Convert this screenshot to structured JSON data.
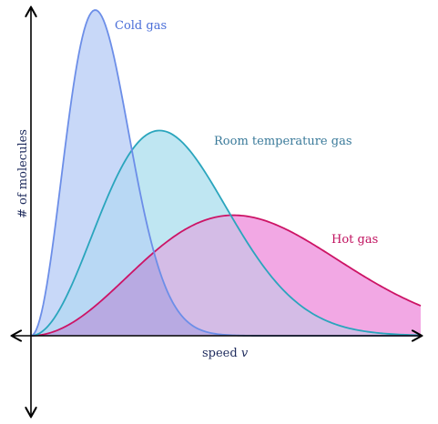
{
  "chart_data": {
    "type": "area",
    "title": "",
    "xlabel_text": "speed ",
    "xlabel_var": "v",
    "ylabel": "# of molecules",
    "x_range": [
      0,
      10
    ],
    "y_range": [
      0,
      1
    ],
    "grid": false,
    "legend": "labels placed next to curves",
    "series": [
      {
        "name": "Cold gas",
        "peak_x": 1.65,
        "peak_y": 1.0,
        "stroke": "#6c8ee8",
        "fill": "#c8d8f8",
        "label_color": "#4a6ed8"
      },
      {
        "name": "Room temperature gas",
        "peak_x": 3.3,
        "peak_y": 0.63,
        "stroke": "#2aa5bd",
        "fill": "#bfe6f2",
        "label_color": "#3a7a9a"
      },
      {
        "name": "Hot gas",
        "peak_x": 5.2,
        "peak_y": 0.37,
        "stroke": "#cc1466",
        "fill": "#f2a8e4",
        "label_color": "#c0105e"
      }
    ]
  },
  "colors": {
    "axis": "#000000",
    "axis_label": "#1d2a5c",
    "overlap_cold_room": "#b8d8f4",
    "overlap_cold_hot": "#c4b4ea",
    "overlap_room_hot": "#d4bce6",
    "overlap_all": "#b8aae2"
  }
}
